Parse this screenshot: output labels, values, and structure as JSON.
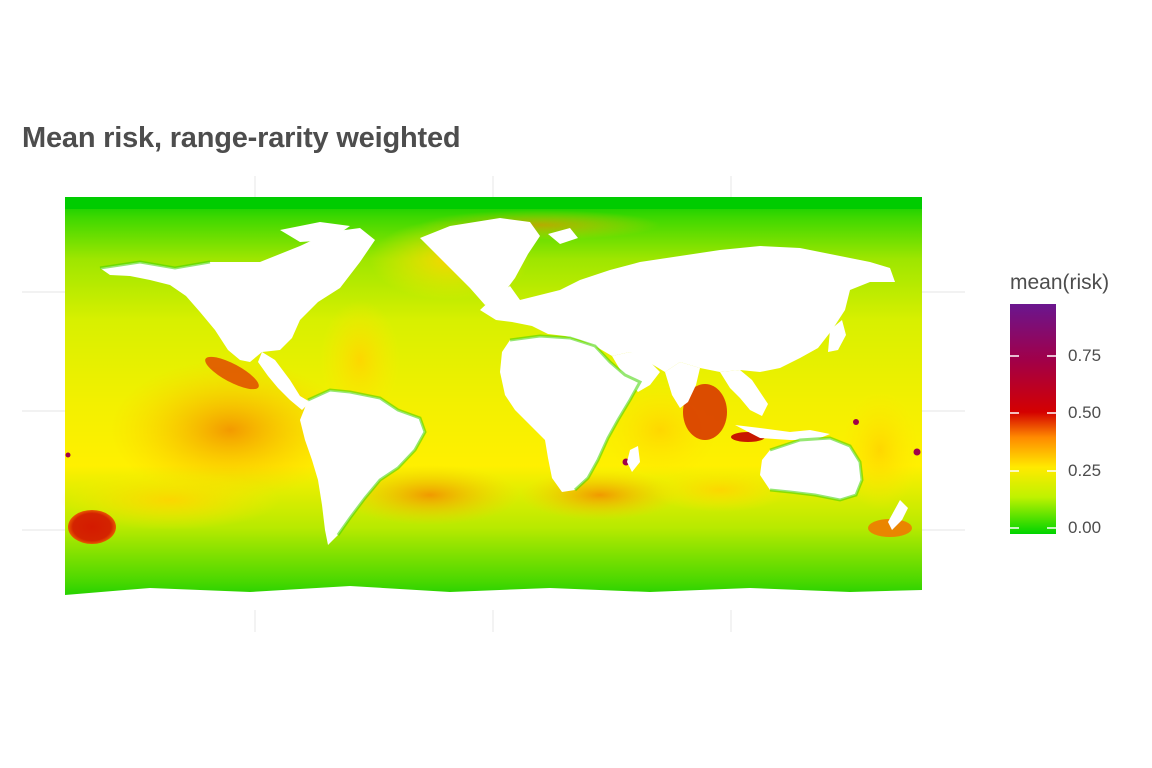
{
  "title": "Mean risk, range-rarity weighted",
  "legend": {
    "title": "mean(risk)",
    "min": 0.0,
    "max": 0.95,
    "ticks": [
      {
        "value": 0.0,
        "label": "0.00"
      },
      {
        "value": 0.25,
        "label": "0.25"
      },
      {
        "value": 0.5,
        "label": "0.50"
      },
      {
        "value": 0.75,
        "label": "0.75"
      }
    ],
    "colors": [
      {
        "value": 0.0,
        "color": "#00d400"
      },
      {
        "value": 0.15,
        "color": "#bff200"
      },
      {
        "value": 0.28,
        "color": "#ffea00"
      },
      {
        "value": 0.4,
        "color": "#ff8a00"
      },
      {
        "value": 0.5,
        "color": "#d40000"
      },
      {
        "value": 0.72,
        "color": "#a0004a"
      },
      {
        "value": 0.95,
        "color": "#6a168f"
      }
    ]
  },
  "map": {
    "background_color": "#ffffff",
    "ocean_base_color": "#c9f000",
    "land_color": "#ffffff",
    "grid_color": "#ebebeb",
    "polar_band_color": "#00cc00"
  }
}
